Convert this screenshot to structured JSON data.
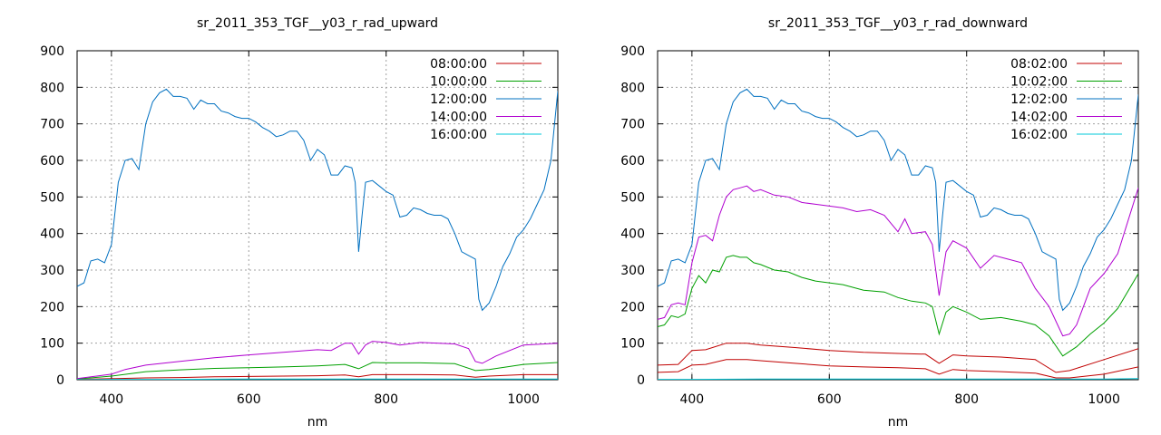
{
  "chart_data": [
    {
      "type": "line",
      "title": "sr_2011_353_TGF__y03_r_rad_upward",
      "xlabel": "nm",
      "ylabel": "",
      "xlim": [
        350,
        1050
      ],
      "ylim": [
        0,
        900
      ],
      "xticks": [
        400,
        600,
        800,
        1000
      ],
      "yticks": [
        0,
        100,
        200,
        300,
        400,
        500,
        600,
        700,
        800,
        900
      ],
      "grid": true,
      "legend_position": "top-right",
      "series": [
        {
          "name": "08:00:00",
          "color": "#c00000",
          "x": [
            350,
            400,
            450,
            500,
            550,
            600,
            650,
            700,
            740,
            760,
            780,
            800,
            850,
            900,
            930,
            950,
            1000,
            1050
          ],
          "y": [
            1,
            3,
            5,
            6,
            8,
            9,
            10,
            11,
            13,
            8,
            14,
            14,
            14,
            13,
            7,
            10,
            14,
            14
          ]
        },
        {
          "name": "10:00:00",
          "color": "#00a000",
          "x": [
            350,
            400,
            450,
            500,
            550,
            600,
            650,
            700,
            740,
            760,
            780,
            800,
            850,
            900,
            930,
            950,
            1000,
            1050
          ],
          "y": [
            2,
            10,
            22,
            27,
            31,
            33,
            35,
            38,
            42,
            30,
            47,
            46,
            46,
            44,
            25,
            28,
            42,
            47
          ]
        },
        {
          "name": "12:00:00",
          "color": "#0070c0",
          "x": [
            350,
            360,
            370,
            380,
            390,
            400,
            410,
            420,
            430,
            440,
            450,
            460,
            470,
            480,
            490,
            500,
            510,
            520,
            530,
            540,
            550,
            560,
            570,
            580,
            590,
            600,
            610,
            620,
            630,
            640,
            650,
            660,
            670,
            680,
            690,
            700,
            710,
            720,
            730,
            740,
            750,
            755,
            760,
            765,
            770,
            780,
            790,
            800,
            810,
            820,
            830,
            840,
            850,
            860,
            870,
            880,
            890,
            900,
            910,
            920,
            930,
            935,
            940,
            950,
            960,
            970,
            980,
            990,
            1000,
            1010,
            1020,
            1030,
            1040,
            1050
          ],
          "y": [
            255,
            265,
            325,
            330,
            320,
            370,
            540,
            600,
            605,
            575,
            700,
            760,
            785,
            795,
            775,
            775,
            770,
            740,
            765,
            755,
            755,
            735,
            730,
            720,
            715,
            715,
            705,
            690,
            680,
            665,
            670,
            680,
            680,
            655,
            600,
            630,
            615,
            560,
            560,
            585,
            580,
            540,
            350,
            450,
            540,
            545,
            530,
            515,
            505,
            445,
            450,
            470,
            465,
            455,
            450,
            450,
            440,
            400,
            350,
            340,
            330,
            220,
            190,
            210,
            255,
            310,
            345,
            390,
            410,
            440,
            480,
            520,
            600,
            790
          ]
        },
        {
          "name": "14:00:00",
          "color": "#b000d0",
          "x": [
            350,
            400,
            420,
            450,
            500,
            550,
            600,
            650,
            700,
            720,
            740,
            750,
            760,
            770,
            780,
            800,
            820,
            850,
            900,
            920,
            930,
            940,
            960,
            1000,
            1050
          ],
          "y": [
            3,
            15,
            28,
            40,
            50,
            60,
            68,
            75,
            82,
            80,
            100,
            100,
            70,
            95,
            105,
            102,
            95,
            102,
            98,
            85,
            50,
            45,
            65,
            95,
            100
          ]
        },
        {
          "name": "16:00:00",
          "color": "#00c8d8",
          "x": [
            350,
            400,
            500,
            600,
            700,
            800,
            900,
            1000,
            1050
          ],
          "y": [
            0,
            1,
            1,
            2,
            2,
            2,
            2,
            2,
            2
          ]
        }
      ]
    },
    {
      "type": "line",
      "title": "sr_2011_353_TGF__y03_r_rad_downward",
      "xlabel": "nm",
      "ylabel": "",
      "xlim": [
        350,
        1050
      ],
      "ylim": [
        0,
        900
      ],
      "xticks": [
        400,
        600,
        800,
        1000
      ],
      "yticks": [
        0,
        100,
        200,
        300,
        400,
        500,
        600,
        700,
        800,
        900
      ],
      "grid": true,
      "legend_position": "top-right",
      "series": [
        {
          "name": "08:02:00",
          "color": "#c00000",
          "x": [
            350,
            380,
            400,
            420,
            450,
            480,
            500,
            550,
            600,
            650,
            700,
            740,
            760,
            780,
            800,
            850,
            900,
            930,
            950,
            1000,
            1050
          ],
          "y": [
            40,
            42,
            80,
            82,
            100,
            100,
            95,
            88,
            80,
            75,
            72,
            70,
            45,
            68,
            65,
            62,
            55,
            20,
            25,
            55,
            85
          ]
        },
        {
          "name": "10:02:00",
          "color": "#00a000",
          "x": [
            350,
            360,
            370,
            380,
            390,
            400,
            410,
            420,
            430,
            440,
            450,
            460,
            470,
            480,
            490,
            500,
            520,
            540,
            560,
            580,
            600,
            620,
            650,
            680,
            700,
            720,
            740,
            750,
            760,
            770,
            780,
            800,
            820,
            850,
            880,
            900,
            920,
            940,
            960,
            980,
            1000,
            1020,
            1050
          ],
          "y": [
            145,
            150,
            175,
            170,
            180,
            250,
            285,
            265,
            300,
            295,
            335,
            340,
            335,
            335,
            320,
            315,
            300,
            295,
            280,
            270,
            265,
            260,
            245,
            240,
            225,
            215,
            210,
            200,
            125,
            185,
            200,
            185,
            165,
            170,
            160,
            150,
            120,
            65,
            90,
            125,
            155,
            195,
            290
          ]
        },
        {
          "name": "12:02:00",
          "color": "#0070c0",
          "x": [
            350,
            360,
            370,
            380,
            390,
            400,
            410,
            420,
            430,
            440,
            450,
            460,
            470,
            480,
            490,
            500,
            510,
            520,
            530,
            540,
            550,
            560,
            570,
            580,
            590,
            600,
            610,
            620,
            630,
            640,
            650,
            660,
            670,
            680,
            690,
            700,
            710,
            720,
            730,
            740,
            750,
            755,
            760,
            765,
            770,
            780,
            790,
            800,
            810,
            820,
            830,
            840,
            850,
            860,
            870,
            880,
            890,
            900,
            910,
            920,
            930,
            935,
            940,
            950,
            960,
            970,
            980,
            990,
            1000,
            1010,
            1020,
            1030,
            1040,
            1050
          ],
          "y": [
            255,
            265,
            325,
            330,
            320,
            370,
            540,
            600,
            605,
            575,
            700,
            760,
            785,
            795,
            775,
            775,
            770,
            740,
            765,
            755,
            755,
            735,
            730,
            720,
            715,
            715,
            705,
            690,
            680,
            665,
            670,
            680,
            680,
            655,
            600,
            630,
            615,
            560,
            560,
            585,
            580,
            540,
            350,
            450,
            540,
            545,
            530,
            515,
            505,
            445,
            450,
            470,
            465,
            455,
            450,
            450,
            440,
            400,
            350,
            340,
            330,
            220,
            190,
            210,
            255,
            310,
            345,
            390,
            410,
            440,
            480,
            520,
            600,
            780
          ]
        },
        {
          "name": "14:02:00",
          "color": "#b000d0",
          "x": [
            350,
            360,
            370,
            380,
            390,
            400,
            410,
            420,
            430,
            440,
            450,
            460,
            470,
            480,
            490,
            500,
            520,
            540,
            560,
            580,
            600,
            620,
            640,
            660,
            680,
            700,
            710,
            720,
            740,
            750,
            760,
            770,
            780,
            800,
            820,
            840,
            860,
            880,
            900,
            920,
            940,
            950,
            960,
            980,
            1000,
            1020,
            1050
          ],
          "y": [
            165,
            170,
            205,
            210,
            205,
            320,
            390,
            395,
            380,
            450,
            500,
            520,
            525,
            530,
            515,
            520,
            505,
            500,
            485,
            480,
            475,
            470,
            460,
            465,
            450,
            405,
            440,
            400,
            405,
            370,
            230,
            350,
            380,
            360,
            305,
            340,
            330,
            320,
            250,
            200,
            120,
            125,
            150,
            250,
            290,
            345,
            525
          ]
        },
        {
          "name": "16:02:00",
          "color": "#00c8d8",
          "x": [
            350,
            400,
            500,
            600,
            700,
            800,
            900,
            1000,
            1050
          ],
          "y": [
            1,
            1,
            2,
            2,
            2,
            2,
            2,
            2,
            3
          ]
        }
      ],
      "extra_traces": [
        {
          "color": "#c00000",
          "x": [
            350,
            380,
            400,
            420,
            450,
            480,
            500,
            550,
            600,
            650,
            700,
            740,
            760,
            780,
            800,
            850,
            900,
            930,
            950,
            1000,
            1050
          ],
          "y": [
            20,
            22,
            40,
            42,
            55,
            55,
            52,
            45,
            38,
            35,
            33,
            30,
            15,
            28,
            25,
            22,
            18,
            5,
            5,
            15,
            35
          ]
        }
      ]
    }
  ]
}
